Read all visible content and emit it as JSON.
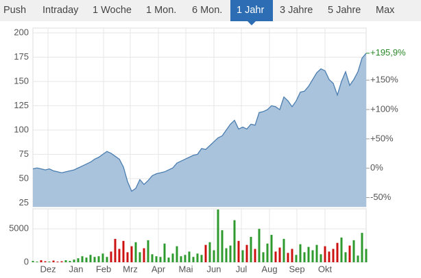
{
  "tabs": [
    "Push",
    "Intraday",
    "1 Woche",
    "1 Mon.",
    "6 Mon.",
    "1 Jahr",
    "3 Jahre",
    "5 Jahre",
    "Max"
  ],
  "active_tab": 5,
  "chart_data": [
    {
      "type": "area",
      "color": "#4a7db0",
      "fill": "#a9c3dd",
      "values": [
        60,
        61,
        60,
        59,
        60,
        58,
        57,
        56,
        57,
        58,
        59,
        61,
        63,
        65,
        67,
        70,
        72,
        75,
        78,
        76,
        73,
        70,
        62,
        47,
        37,
        40,
        49,
        44,
        48,
        53,
        55,
        56,
        57,
        59,
        61,
        66,
        68,
        70,
        72,
        74,
        75,
        81,
        80,
        84,
        88,
        92,
        94,
        100,
        106,
        110,
        101,
        103,
        101,
        106,
        105,
        118,
        119,
        121,
        125,
        124,
        121,
        134,
        130,
        124,
        130,
        139,
        140,
        145,
        152,
        159,
        163,
        161,
        152,
        148,
        136,
        150,
        160,
        146,
        152,
        160,
        174,
        179
      ],
      "xlim": [
        0,
        81
      ],
      "xticks": [
        {
          "value": 3.67,
          "label": "Dez"
        },
        {
          "value": 10.5,
          "label": "Jan"
        },
        {
          "value": 17.17,
          "label": "Feb"
        },
        {
          "value": 23.67,
          "label": "Mrz"
        },
        {
          "value": 30.5,
          "label": "Apr"
        },
        {
          "value": 37.17,
          "label": "Mai"
        },
        {
          "value": 44,
          "label": "Jun"
        },
        {
          "value": 50.67,
          "label": "Jul"
        },
        {
          "value": 57.5,
          "label": "Aug"
        },
        {
          "value": 64.17,
          "label": "Sep"
        },
        {
          "value": 71,
          "label": "Okt"
        }
      ],
      "ylim": [
        21,
        200
      ],
      "yticks": [
        25,
        50,
        75,
        100,
        125,
        150,
        175,
        200
      ],
      "y2lim": [
        -65.7,
        230.6
      ],
      "y2ticks": [
        {
          "value": -50,
          "label": "-50%"
        },
        {
          "value": 0,
          "label": "0%"
        },
        {
          "value": 50,
          "label": "+50%"
        },
        {
          "value": 100,
          "label": "+100%"
        },
        {
          "value": 150,
          "label": "+150%"
        }
      ],
      "annotation": {
        "value": 195.9,
        "label": "+195,9%",
        "color": "#2a8a2a"
      },
      "grid": true
    },
    {
      "type": "bar",
      "up_color": "#2e9a2e",
      "down_color": "#cc1111",
      "values": [
        200,
        100,
        300,
        150,
        100,
        250,
        100,
        150,
        300,
        200,
        400,
        600,
        900,
        700,
        1100,
        800,
        900,
        1300,
        800,
        1600,
        3500,
        2000,
        3200,
        1500,
        2400,
        3000,
        1500,
        2100,
        3300,
        1200,
        900,
        800,
        2800,
        700,
        1300,
        2400,
        900,
        1100,
        1600,
        800,
        1300,
        1100,
        2600,
        3000,
        1800,
        7900,
        4800,
        2100,
        2500,
        6300,
        3200,
        1800,
        2600,
        3800,
        2000,
        5000,
        1500,
        2800,
        4100,
        1600,
        2200,
        3500,
        1400,
        2000,
        1100,
        2700,
        1500,
        2300,
        1800,
        2600,
        1200,
        2400,
        1600,
        2000,
        2900,
        3700,
        1500,
        2500,
        3300,
        1000,
        4400,
        2000
      ],
      "ylim": [
        0,
        8000
      ],
      "yticks": [
        0,
        5000
      ],
      "grid": true
    }
  ]
}
